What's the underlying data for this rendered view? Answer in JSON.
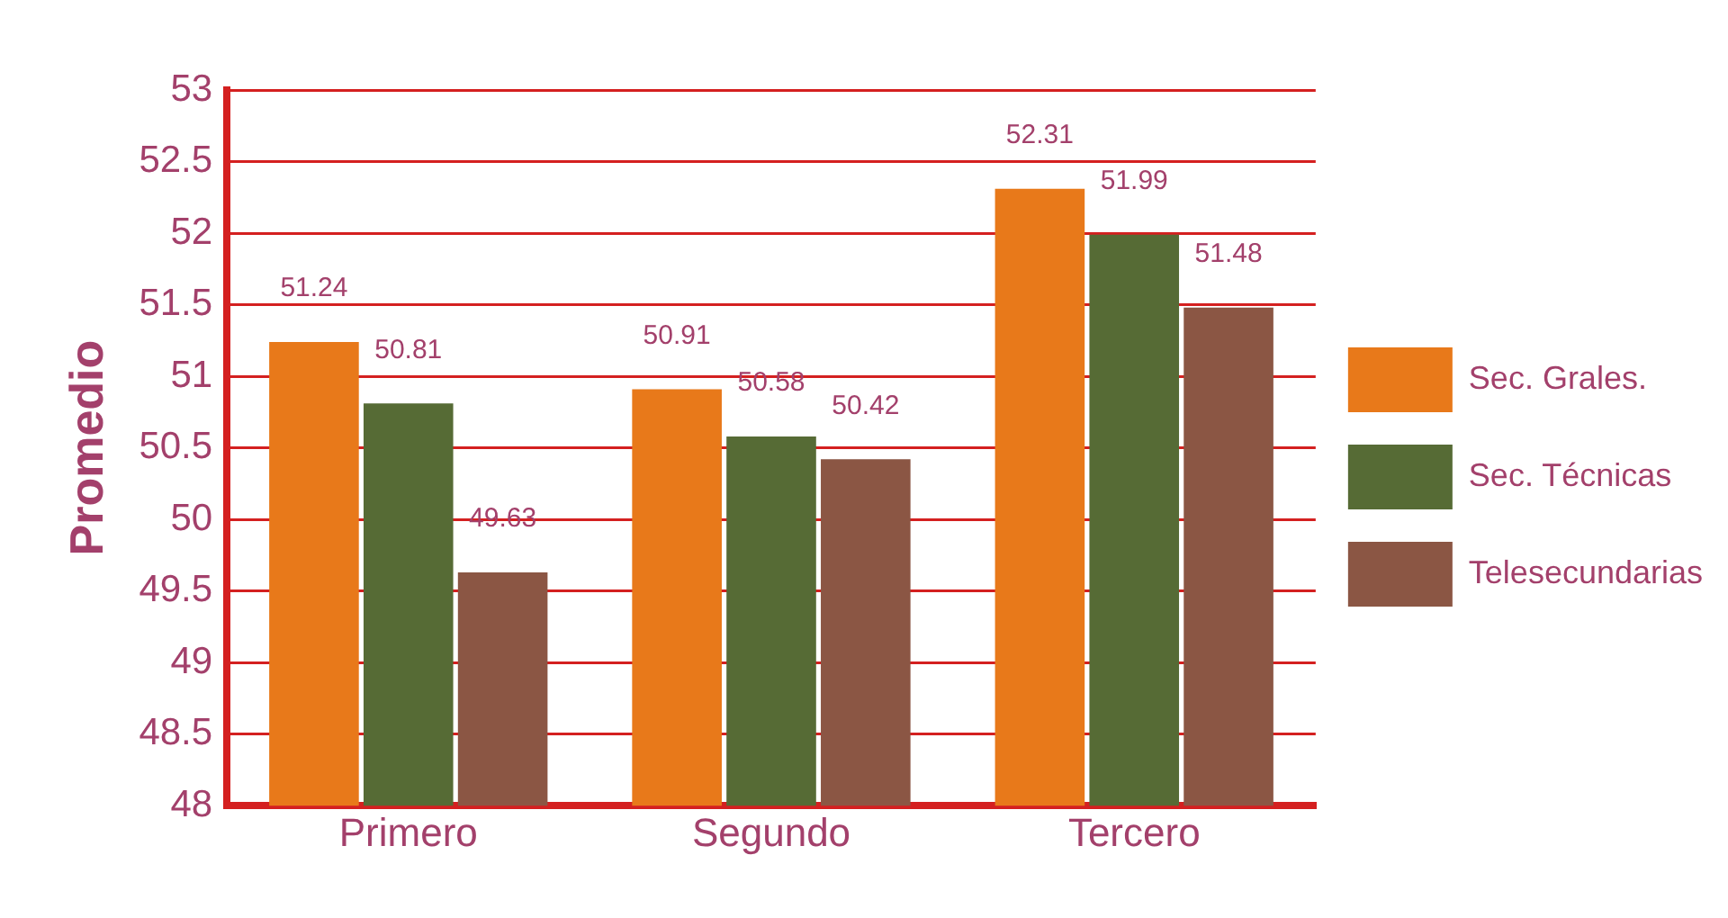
{
  "chart_data": {
    "type": "bar",
    "ylabel": "Promedio",
    "categories": [
      "Primero",
      "Segundo",
      "Tercero"
    ],
    "series": [
      {
        "name": "Sec. Grales.",
        "color": "#e8791a",
        "values": [
          51.24,
          50.91,
          52.31
        ]
      },
      {
        "name": "Sec. Técnicas",
        "color": "#566b35",
        "values": [
          50.81,
          50.58,
          51.99
        ]
      },
      {
        "name": "Telesecundarias",
        "color": "#8b5644",
        "values": [
          49.63,
          50.42,
          51.48
        ]
      }
    ],
    "ylim": [
      48,
      53
    ],
    "yticks": [
      48,
      48.5,
      49,
      49.5,
      50,
      50.5,
      51,
      51.5,
      52,
      52.5,
      53
    ],
    "grid": "y",
    "legend": "right",
    "data_labels": true
  }
}
